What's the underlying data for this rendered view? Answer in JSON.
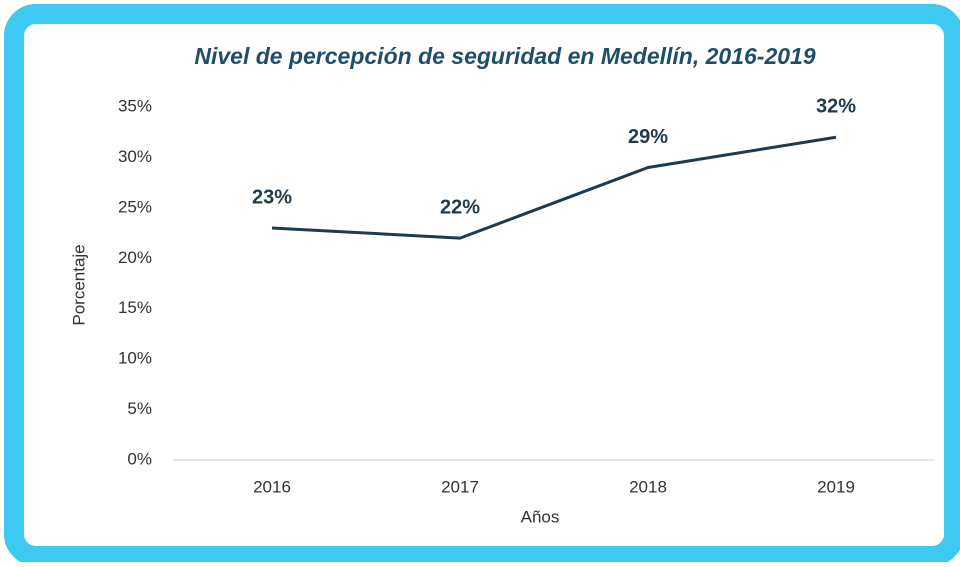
{
  "chart_data": {
    "type": "line",
    "title": "Nivel de percepción de seguridad en Medellín, 2016-2019",
    "x_label": "Años",
    "y_label": "Porcentaje",
    "categories": [
      "2016",
      "2017",
      "2018",
      "2019"
    ],
    "values": [
      23,
      22,
      29,
      32
    ],
    "value_labels": [
      "23%",
      "22%",
      "29%",
      "32%"
    ],
    "color": "#1f3a4d",
    "ylim": [
      0,
      35
    ],
    "yticks": [
      {
        "value": 0,
        "label": "0%"
      },
      {
        "value": 5,
        "label": "5%"
      },
      {
        "value": 10,
        "label": "10%"
      },
      {
        "value": 15,
        "label": "15%"
      },
      {
        "value": 20,
        "label": "20%"
      },
      {
        "value": 25,
        "label": "25%"
      },
      {
        "value": 30,
        "label": "30%"
      },
      {
        "value": 35,
        "label": "35%"
      }
    ],
    "grid": false
  }
}
